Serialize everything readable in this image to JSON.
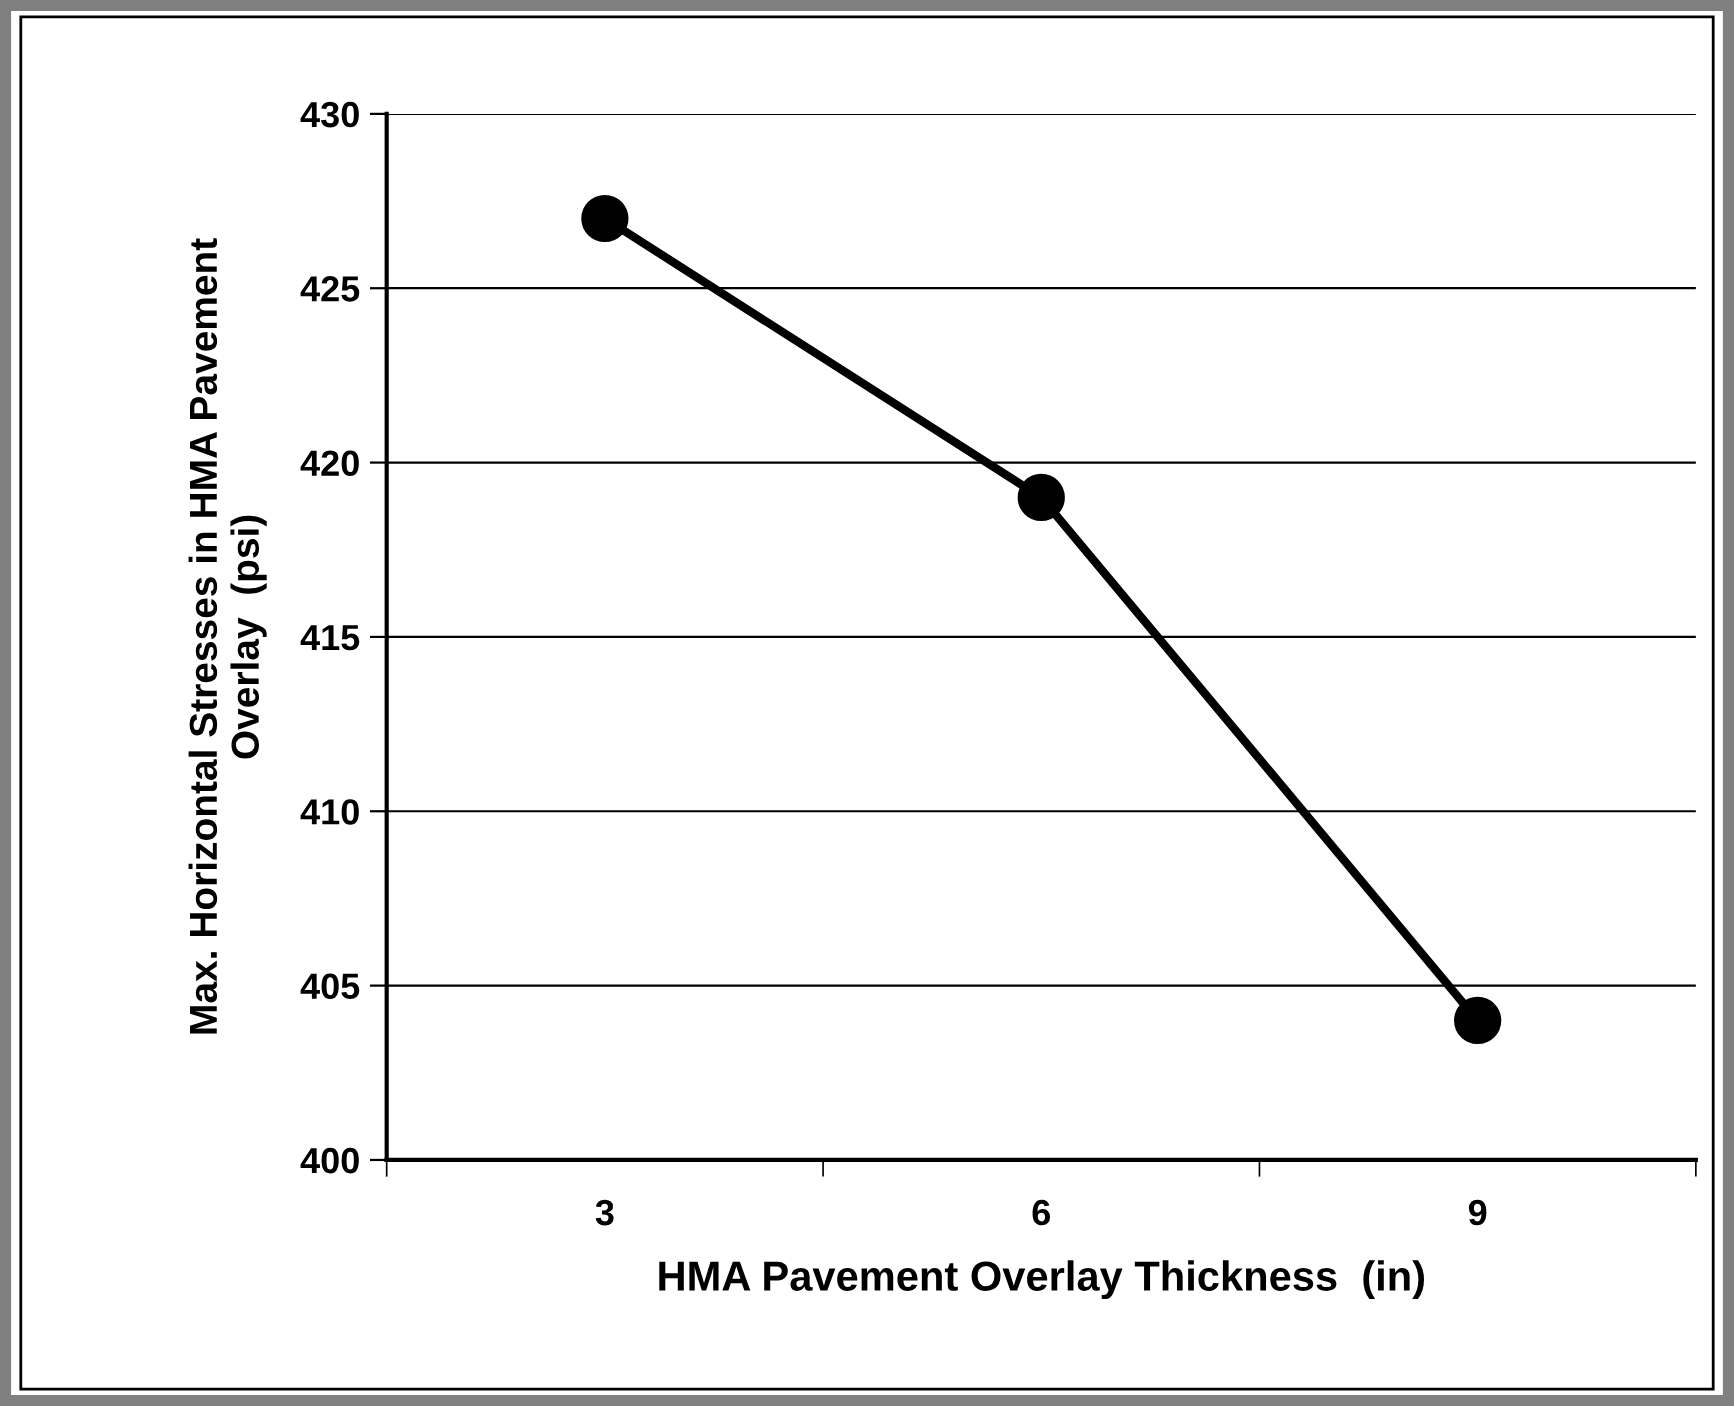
{
  "chart_data": {
    "type": "line",
    "xlabel": "HMA Pavement Overlay Thickness  (in)",
    "ylabel": "Max. Horizontal Stresses in HMA Pavement\nOverlay  (psi)",
    "categories": [
      "3",
      "6",
      "9"
    ],
    "series": [
      {
        "color": "#000000",
        "values": [
          427,
          419,
          404
        ]
      }
    ],
    "ylim": [
      400,
      430
    ],
    "yticks": [
      400,
      405,
      410,
      415,
      420,
      425,
      430
    ],
    "grid": "y",
    "marker": "circle",
    "line_style": "solid"
  }
}
